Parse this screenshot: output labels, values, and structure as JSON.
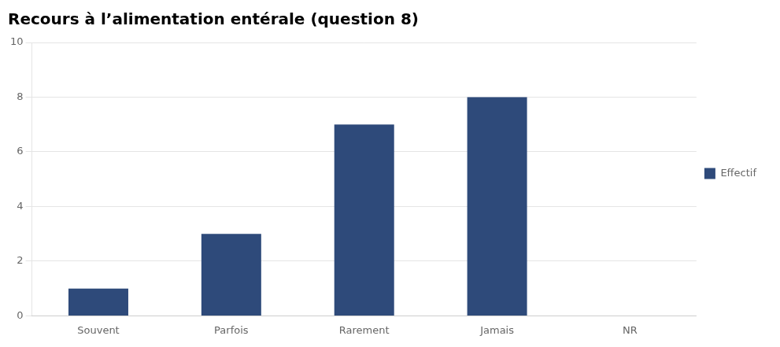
{
  "chart_data": {
    "type": "bar",
    "title": "Recours à l’alimentation entérale (question 8)",
    "categories": [
      "Souvent",
      "Parfois",
      "Rarement",
      "Jamais",
      "NR"
    ],
    "series": [
      {
        "name": "Effectif",
        "color": "#2E4A7A",
        "values": [
          1,
          3,
          7,
          8,
          0
        ]
      }
    ],
    "ylim": [
      0,
      10
    ],
    "yticks": [
      0,
      2,
      4,
      6,
      8,
      10
    ],
    "grid": true,
    "legend": "right"
  }
}
